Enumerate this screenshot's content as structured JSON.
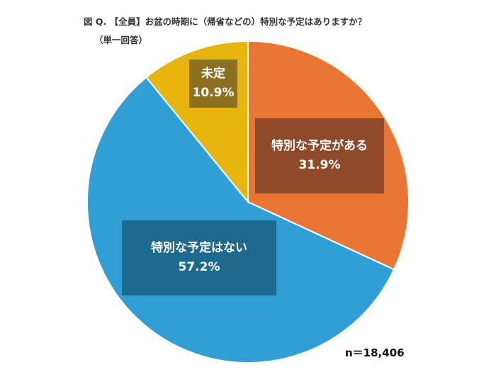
{
  "header": {
    "title": "図 Q. 【全員】お盆の時期に（帰省などの）特別な予定はありますか？",
    "subtitle": "（単一回答）"
  },
  "chart_data": {
    "type": "pie",
    "title": "図 Q. 【全員】お盆の時期に（帰省などの）特別な予定はありますか？",
    "subtitle": "（単一回答）",
    "start_angle_deg": 0,
    "direction": "clockwise",
    "slices": [
      {
        "label": "特別な予定がある",
        "value": 31.9,
        "value_label": "31.9%",
        "color": "#E97535",
        "box_color": "#8F4A2A"
      },
      {
        "label": "特別な予定はない",
        "value": 57.2,
        "value_label": "57.2%",
        "color": "#2F9FD6",
        "box_color": "#1E6A8F"
      },
      {
        "label": "未定",
        "value": 10.9,
        "value_label": "10.9%",
        "color": "#E6B40C",
        "box_color": "#8E7023"
      }
    ],
    "note": "n＝18,406"
  }
}
